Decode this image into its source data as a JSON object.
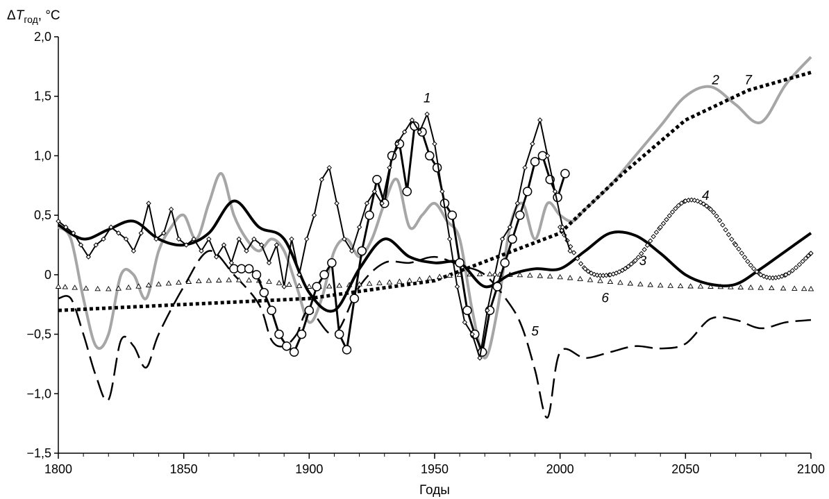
{
  "chart_data": {
    "type": "line",
    "ylabel_parts": {
      "delta": "Δ",
      "symbol": "T",
      "subscript": "год",
      "unit": ", °C"
    },
    "xlabel": "Годы",
    "xlim": [
      1800,
      2100
    ],
    "ylim": [
      -1.5,
      2.0
    ],
    "x_ticks": [
      1800,
      1850,
      1900,
      1950,
      2000,
      2050,
      2100
    ],
    "x_tick_labels": [
      "1800",
      "1850",
      "1900",
      "1950",
      "2000",
      "2050",
      "2100"
    ],
    "y_ticks": [
      -1.5,
      -1.0,
      -0.5,
      0,
      0.5,
      1.0,
      1.5,
      2.0
    ],
    "y_tick_labels": [
      "−1,5",
      "−1,0",
      "−0,5",
      "0",
      "0,5",
      "1,0",
      "1,5",
      "2,0"
    ],
    "grid": false,
    "series": [
      {
        "name": "1",
        "color": "#000000",
        "style": "solid-diamond-markers",
        "x": [
          1800,
          1803,
          1806,
          1809,
          1812,
          1815,
          1818,
          1821,
          1824,
          1827,
          1830,
          1833,
          1836,
          1839,
          1842,
          1845,
          1848,
          1851,
          1854,
          1857,
          1860,
          1863,
          1866,
          1869,
          1872,
          1875,
          1878,
          1881,
          1884,
          1887,
          1890,
          1893,
          1896,
          1899,
          1902,
          1905,
          1908,
          1911,
          1914,
          1917,
          1920,
          1923,
          1926,
          1929,
          1932,
          1935,
          1938,
          1941,
          1944,
          1947,
          1950,
          1953,
          1956,
          1959,
          1962,
          1965,
          1968,
          1971,
          1974,
          1977,
          1980,
          1983,
          1986,
          1989,
          1992,
          1995,
          1998,
          2001,
          2004
        ],
        "y": [
          0.45,
          0.4,
          0.35,
          0.25,
          0.15,
          0.25,
          0.3,
          0.4,
          0.35,
          0.3,
          0.2,
          0.35,
          0.6,
          0.3,
          0.35,
          0.55,
          0.3,
          0.25,
          0.3,
          0.2,
          0.3,
          0.15,
          0.25,
          0.1,
          0.3,
          0.2,
          0.3,
          0.25,
          0.1,
          0.25,
          -0.1,
          0.3,
          0.0,
          0.3,
          0.5,
          0.8,
          0.9,
          0.6,
          0.3,
          0.2,
          0.4,
          0.6,
          0.7,
          0.6,
          0.9,
          1.1,
          1.2,
          1.3,
          1.2,
          1.35,
          1.1,
          0.7,
          0.3,
          -0.1,
          -0.4,
          -0.5,
          -0.7,
          -0.3,
          0.0,
          0.3,
          0.4,
          0.6,
          0.9,
          1.1,
          1.3,
          1.0,
          0.7,
          0.4,
          0.2
        ]
      },
      {
        "name": "1",
        "color": "#000000",
        "style": "circle-markers",
        "x": [
          1870,
          1873,
          1876,
          1879,
          1882,
          1885,
          1888,
          1891,
          1894,
          1897,
          1900,
          1903,
          1906,
          1909,
          1912,
          1915,
          1918,
          1921,
          1924,
          1927,
          1930,
          1933,
          1936,
          1939,
          1942,
          1945,
          1948,
          1951,
          1954,
          1957,
          1960,
          1963,
          1966,
          1969,
          1972,
          1975,
          1978,
          1981,
          1984,
          1987,
          1990,
          1993,
          1996,
          1999,
          2002
        ],
        "y": [
          0.05,
          0.05,
          0.05,
          0.0,
          -0.15,
          -0.3,
          -0.5,
          -0.6,
          -0.65,
          -0.5,
          -0.3,
          -0.1,
          0.0,
          0.1,
          -0.5,
          -0.63,
          -0.2,
          0.2,
          0.5,
          0.8,
          0.6,
          1.0,
          1.1,
          0.7,
          1.25,
          1.2,
          1.0,
          0.9,
          0.6,
          0.5,
          0.1,
          -0.3,
          -0.5,
          -0.65,
          -0.3,
          -0.1,
          0.1,
          0.3,
          0.5,
          0.7,
          0.95,
          1.0,
          0.8,
          0.65,
          0.85
        ]
      },
      {
        "name": "2",
        "color": "#a6a6a6",
        "style": "solid-thick",
        "x": [
          1800,
          1805,
          1810,
          1815,
          1820,
          1825,
          1830,
          1835,
          1840,
          1845,
          1850,
          1855,
          1860,
          1865,
          1870,
          1875,
          1880,
          1885,
          1890,
          1895,
          1900,
          1905,
          1910,
          1915,
          1920,
          1925,
          1930,
          1935,
          1940,
          1945,
          1950,
          1955,
          1960,
          1965,
          1970,
          1975,
          1980,
          1985,
          1990,
          1995,
          2000,
          2005,
          2010,
          2020,
          2030,
          2040,
          2050,
          2060,
          2070,
          2080,
          2090,
          2100
        ],
        "y": [
          0.4,
          0.3,
          -0.2,
          -0.6,
          -0.5,
          0.0,
          0.0,
          -0.2,
          0.2,
          0.4,
          0.5,
          0.3,
          0.6,
          0.85,
          0.5,
          0.3,
          0.2,
          0.3,
          0.2,
          -0.1,
          -0.4,
          -0.2,
          0.2,
          0.3,
          0.15,
          0.3,
          0.6,
          0.8,
          0.4,
          0.5,
          0.6,
          0.45,
          0.3,
          -0.3,
          -0.7,
          -0.3,
          0.4,
          0.6,
          0.3,
          0.6,
          0.5,
          0.45,
          0.55,
          0.75,
          1.0,
          1.25,
          1.5,
          1.58,
          1.43,
          1.28,
          1.6,
          1.83
        ]
      },
      {
        "name": "3",
        "color": "#000000",
        "style": "solid-thick",
        "x": [
          1800,
          1810,
          1820,
          1830,
          1840,
          1850,
          1860,
          1870,
          1880,
          1890,
          1900,
          1910,
          1920,
          1930,
          1940,
          1950,
          1960,
          1970,
          1980,
          1990,
          2000,
          2010,
          2020,
          2030,
          2040,
          2050,
          2060,
          2070,
          2080,
          2090,
          2100
        ],
        "y": [
          0.42,
          0.3,
          0.38,
          0.45,
          0.3,
          0.25,
          0.35,
          0.62,
          0.4,
          0.3,
          -0.15,
          -0.3,
          0.05,
          0.3,
          0.15,
          0.1,
          0.1,
          -0.1,
          0.0,
          0.05,
          0.05,
          0.2,
          0.35,
          0.33,
          0.18,
          0.0,
          -0.08,
          -0.08,
          0.05,
          0.2,
          0.35
        ]
      },
      {
        "name": "4",
        "color": "#000000",
        "style": "diamond-chain",
        "x": [
          2000,
          2010,
          2020,
          2030,
          2040,
          2050,
          2060,
          2070,
          2080,
          2090,
          2100
        ],
        "y": [
          0.4,
          0.05,
          0.0,
          0.12,
          0.4,
          0.62,
          0.55,
          0.25,
          0.0,
          0.0,
          0.18
        ]
      },
      {
        "name": "5",
        "color": "#000000",
        "style": "dashed",
        "x": [
          1800,
          1805,
          1810,
          1815,
          1820,
          1825,
          1830,
          1835,
          1840,
          1850,
          1860,
          1870,
          1880,
          1885,
          1890,
          1895,
          1900,
          1910,
          1920,
          1930,
          1940,
          1950,
          1960,
          1970,
          1980,
          1985,
          1990,
          1995,
          2000,
          2010,
          2020,
          2030,
          2040,
          2050,
          2060,
          2070,
          2080,
          2090,
          2100
        ],
        "y": [
          -0.2,
          -0.2,
          -0.5,
          -0.85,
          -1.05,
          -0.55,
          -0.6,
          -0.78,
          -0.5,
          -0.1,
          0.2,
          0.0,
          -0.25,
          -0.55,
          -0.6,
          -0.5,
          -0.3,
          -0.5,
          -0.1,
          0.1,
          0.1,
          0.15,
          0.08,
          0.0,
          -0.25,
          -0.45,
          -0.8,
          -1.2,
          -0.65,
          -0.7,
          -0.65,
          -0.6,
          -0.62,
          -0.58,
          -0.37,
          -0.38,
          -0.45,
          -0.4,
          -0.38
        ]
      },
      {
        "name": "6",
        "color": "#000000",
        "style": "triangle-chain",
        "x": [
          1800,
          1820,
          1840,
          1860,
          1880,
          1900,
          1920,
          1940,
          1960,
          1980,
          2000,
          2020,
          2040,
          2060,
          2080,
          2100
        ],
        "y": [
          -0.1,
          -0.12,
          -0.08,
          -0.05,
          -0.05,
          -0.1,
          -0.08,
          -0.05,
          0.0,
          0.0,
          -0.02,
          -0.06,
          -0.09,
          -0.1,
          -0.11,
          -0.12
        ]
      },
      {
        "name": "7",
        "color": "#000000",
        "style": "dotted-thick",
        "x": [
          1800,
          1850,
          1900,
          1950,
          1975,
          2000,
          2025,
          2050,
          2075,
          2100
        ],
        "y": [
          -0.3,
          -0.25,
          -0.2,
          -0.05,
          0.15,
          0.35,
          0.85,
          1.3,
          1.55,
          1.7
        ]
      }
    ],
    "annotations": [
      {
        "text": "1",
        "x": 1947,
        "y": 1.45
      },
      {
        "text": "2",
        "x": 2062,
        "y": 1.6
      },
      {
        "text": "7",
        "x": 2075,
        "y": 1.6
      },
      {
        "text": "4",
        "x": 2058,
        "y": 0.63
      },
      {
        "text": "3",
        "x": 2033,
        "y": 0.08
      },
      {
        "text": "6",
        "x": 2018,
        "y": -0.23
      },
      {
        "text": "5",
        "x": 1990,
        "y": -0.51
      }
    ]
  }
}
